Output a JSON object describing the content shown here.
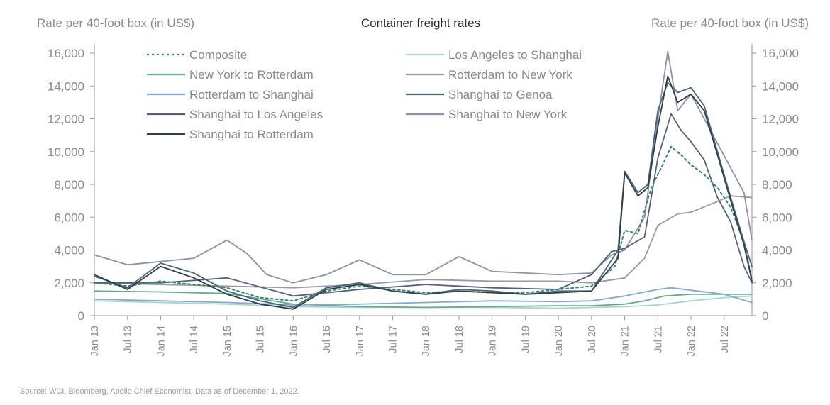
{
  "chart_data": {
    "type": "line",
    "title": "Container freight rates",
    "ylabel_left": "Rate per 40-foot box (in US$)",
    "ylabel_right": "Rate per 40-foot box (in US$)",
    "ylim": [
      0,
      16000
    ],
    "yticks": [
      "0",
      "2,000",
      "4,000",
      "6,000",
      "8,000",
      "10,000",
      "12,000",
      "14,000",
      "16,000"
    ],
    "xticks": [
      "Jan 13",
      "Jul 13",
      "Jan 14",
      "Jul 14",
      "Jan 15",
      "Jul 15",
      "Jan 16",
      "Jul 16",
      "Jan 17",
      "Jul 17",
      "Jan 18",
      "Jul 18",
      "Jan 19",
      "Jul 19",
      "Jan 20",
      "Jul 20",
      "Jan 21",
      "Jul 21",
      "Jan 22",
      "Jul 22"
    ],
    "x_note": "x values are years expressed as decimals (e.g. 2021.5 = mid-2021)",
    "series": [
      {
        "name": "Composite",
        "color": "#2e8b6a",
        "dash": true,
        "x": [
          2013.0,
          2013.5,
          2014.0,
          2014.5,
          2015.0,
          2015.5,
          2016.0,
          2016.5,
          2017.0,
          2017.5,
          2018.0,
          2018.5,
          2019.0,
          2019.5,
          2020.0,
          2020.5,
          2020.85,
          2021.0,
          2021.2,
          2021.4,
          2021.55,
          2021.7,
          2021.85,
          2022.0,
          2022.2,
          2022.4,
          2022.6,
          2022.8,
          2022.92
        ],
        "y": [
          2000,
          1800,
          2100,
          1900,
          1700,
          1100,
          900,
          1500,
          1800,
          1600,
          1400,
          1500,
          1400,
          1400,
          1600,
          1800,
          3000,
          5200,
          5000,
          7800,
          9000,
          10300,
          9800,
          9200,
          8600,
          7800,
          6600,
          4500,
          2200
        ]
      },
      {
        "name": "Los Angeles to Shanghai",
        "color": "#a9d6c6",
        "x": [
          2013.0,
          2014.0,
          2015.0,
          2016.0,
          2017.0,
          2018.0,
          2019.0,
          2020.0,
          2020.5,
          2021.0,
          2021.5,
          2022.0,
          2022.5,
          2022.92
        ],
        "y": [
          900,
          800,
          700,
          550,
          500,
          500,
          500,
          450,
          500,
          550,
          650,
          900,
          1100,
          1200
        ]
      },
      {
        "name": "New York to Rotterdam",
        "color": "#5fae8e",
        "x": [
          2013.0,
          2014.0,
          2015.0,
          2016.0,
          2017.0,
          2018.0,
          2019.0,
          2020.0,
          2020.5,
          2021.0,
          2021.3,
          2021.6,
          2022.0,
          2022.5,
          2022.92
        ],
        "y": [
          1500,
          1450,
          1350,
          700,
          550,
          500,
          550,
          600,
          600,
          700,
          900,
          1200,
          1300,
          1300,
          1300
        ]
      },
      {
        "name": "Rotterdam to New York",
        "color": "#9a9a9a",
        "x": [
          2013.0,
          2014.0,
          2015.0,
          2016.0,
          2017.0,
          2018.0,
          2019.0,
          2020.0,
          2020.5,
          2021.0,
          2021.3,
          2021.5,
          2021.8,
          2022.0,
          2022.3,
          2022.6,
          2022.92
        ],
        "y": [
          2000,
          1900,
          1800,
          1700,
          1900,
          2200,
          2100,
          2100,
          2000,
          2300,
          3500,
          5500,
          6200,
          6300,
          6800,
          7300,
          7200
        ]
      },
      {
        "name": "Rotterdam to Shanghai",
        "color": "#82a9cf",
        "x": [
          2013.0,
          2014.0,
          2015.0,
          2016.0,
          2017.0,
          2018.0,
          2019.0,
          2020.0,
          2020.5,
          2021.0,
          2021.5,
          2021.7,
          2022.0,
          2022.5,
          2022.92
        ],
        "y": [
          1000,
          900,
          800,
          650,
          700,
          800,
          900,
          850,
          900,
          1200,
          1600,
          1700,
          1550,
          1300,
          800
        ]
      },
      {
        "name": "Shanghai to Genoa",
        "color": "#4a6478",
        "x": [
          2013.0,
          2013.5,
          2014.0,
          2014.5,
          2015.0,
          2015.5,
          2016.0,
          2016.5,
          2017.0,
          2017.5,
          2018.0,
          2018.5,
          2019.0,
          2019.5,
          2020.0,
          2020.5,
          2020.9,
          2021.0,
          2021.2,
          2021.35,
          2021.5,
          2021.65,
          2021.8,
          2022.0,
          2022.2,
          2022.4,
          2022.6,
          2022.8,
          2022.92
        ],
        "y": [
          2400,
          1700,
          3200,
          2600,
          1500,
          900,
          500,
          1700,
          2000,
          1500,
          1300,
          1600,
          1500,
          1300,
          1500,
          1500,
          4000,
          8800,
          7500,
          8000,
          12500,
          14200,
          13600,
          13900,
          12800,
          10000,
          7200,
          4500,
          3000
        ]
      },
      {
        "name": "Shanghai to Los Angeles",
        "color": "#55607f",
        "x": [
          2013.0,
          2014.0,
          2015.0,
          2016.0,
          2017.0,
          2018.0,
          2019.0,
          2020.0,
          2020.5,
          2020.8,
          2021.0,
          2021.3,
          2021.5,
          2021.7,
          2021.85,
          2022.0,
          2022.2,
          2022.4,
          2022.6,
          2022.8,
          2022.92
        ],
        "y": [
          2000,
          2000,
          2300,
          1200,
          1600,
          1900,
          1700,
          1600,
          2500,
          3900,
          4100,
          4800,
          9600,
          12300,
          11300,
          10600,
          9500,
          7200,
          5700,
          3000,
          2000
        ]
      },
      {
        "name": "Shanghai to New York",
        "color": "#8e90a8",
        "x": [
          2013.0,
          2013.5,
          2014.0,
          2014.5,
          2015.0,
          2015.3,
          2015.6,
          2016.0,
          2016.5,
          2017.0,
          2017.5,
          2018.0,
          2018.5,
          2019.0,
          2019.5,
          2020.0,
          2020.5,
          2020.8,
          2021.0,
          2021.3,
          2021.5,
          2021.65,
          2021.8,
          2022.0,
          2022.2,
          2022.4,
          2022.6,
          2022.8,
          2022.92
        ],
        "y": [
          3700,
          3100,
          3300,
          3500,
          4600,
          3800,
          2500,
          2000,
          2500,
          3400,
          2500,
          2500,
          3600,
          2700,
          2600,
          2500,
          2600,
          3700,
          4000,
          6000,
          12000,
          16100,
          12500,
          13500,
          12000,
          10500,
          9000,
          7500,
          4600
        ]
      },
      {
        "name": "Shanghai to Rotterdam",
        "color": "#2f3f4c",
        "x": [
          2013.0,
          2013.5,
          2014.0,
          2014.5,
          2015.0,
          2015.5,
          2016.0,
          2016.5,
          2017.0,
          2017.5,
          2018.0,
          2018.5,
          2019.0,
          2019.5,
          2020.0,
          2020.5,
          2020.9,
          2021.0,
          2021.2,
          2021.35,
          2021.5,
          2021.65,
          2021.8,
          2022.0,
          2022.2,
          2022.4,
          2022.6,
          2022.8,
          2022.92
        ],
        "y": [
          2500,
          1600,
          3000,
          2300,
          1300,
          700,
          400,
          1600,
          1900,
          1500,
          1300,
          1500,
          1400,
          1300,
          1400,
          1500,
          3500,
          8700,
          7300,
          7800,
          11500,
          14600,
          13000,
          13500,
          12500,
          9800,
          7000,
          4300,
          2100
        ]
      }
    ],
    "legend": [
      "Composite",
      "Los Angeles to Shanghai",
      "New York to Rotterdam",
      "Rotterdam to New York",
      "Rotterdam to Shanghai",
      "Shanghai to Genoa",
      "Shanghai to Los Angeles",
      "Shanghai to New York",
      "Shanghai to Rotterdam"
    ],
    "legend_placement": "top-left",
    "grid": false,
    "source": "Source: WCI, Bloomberg, Apollo Chief Economist. Data as of December 1, 2022."
  }
}
